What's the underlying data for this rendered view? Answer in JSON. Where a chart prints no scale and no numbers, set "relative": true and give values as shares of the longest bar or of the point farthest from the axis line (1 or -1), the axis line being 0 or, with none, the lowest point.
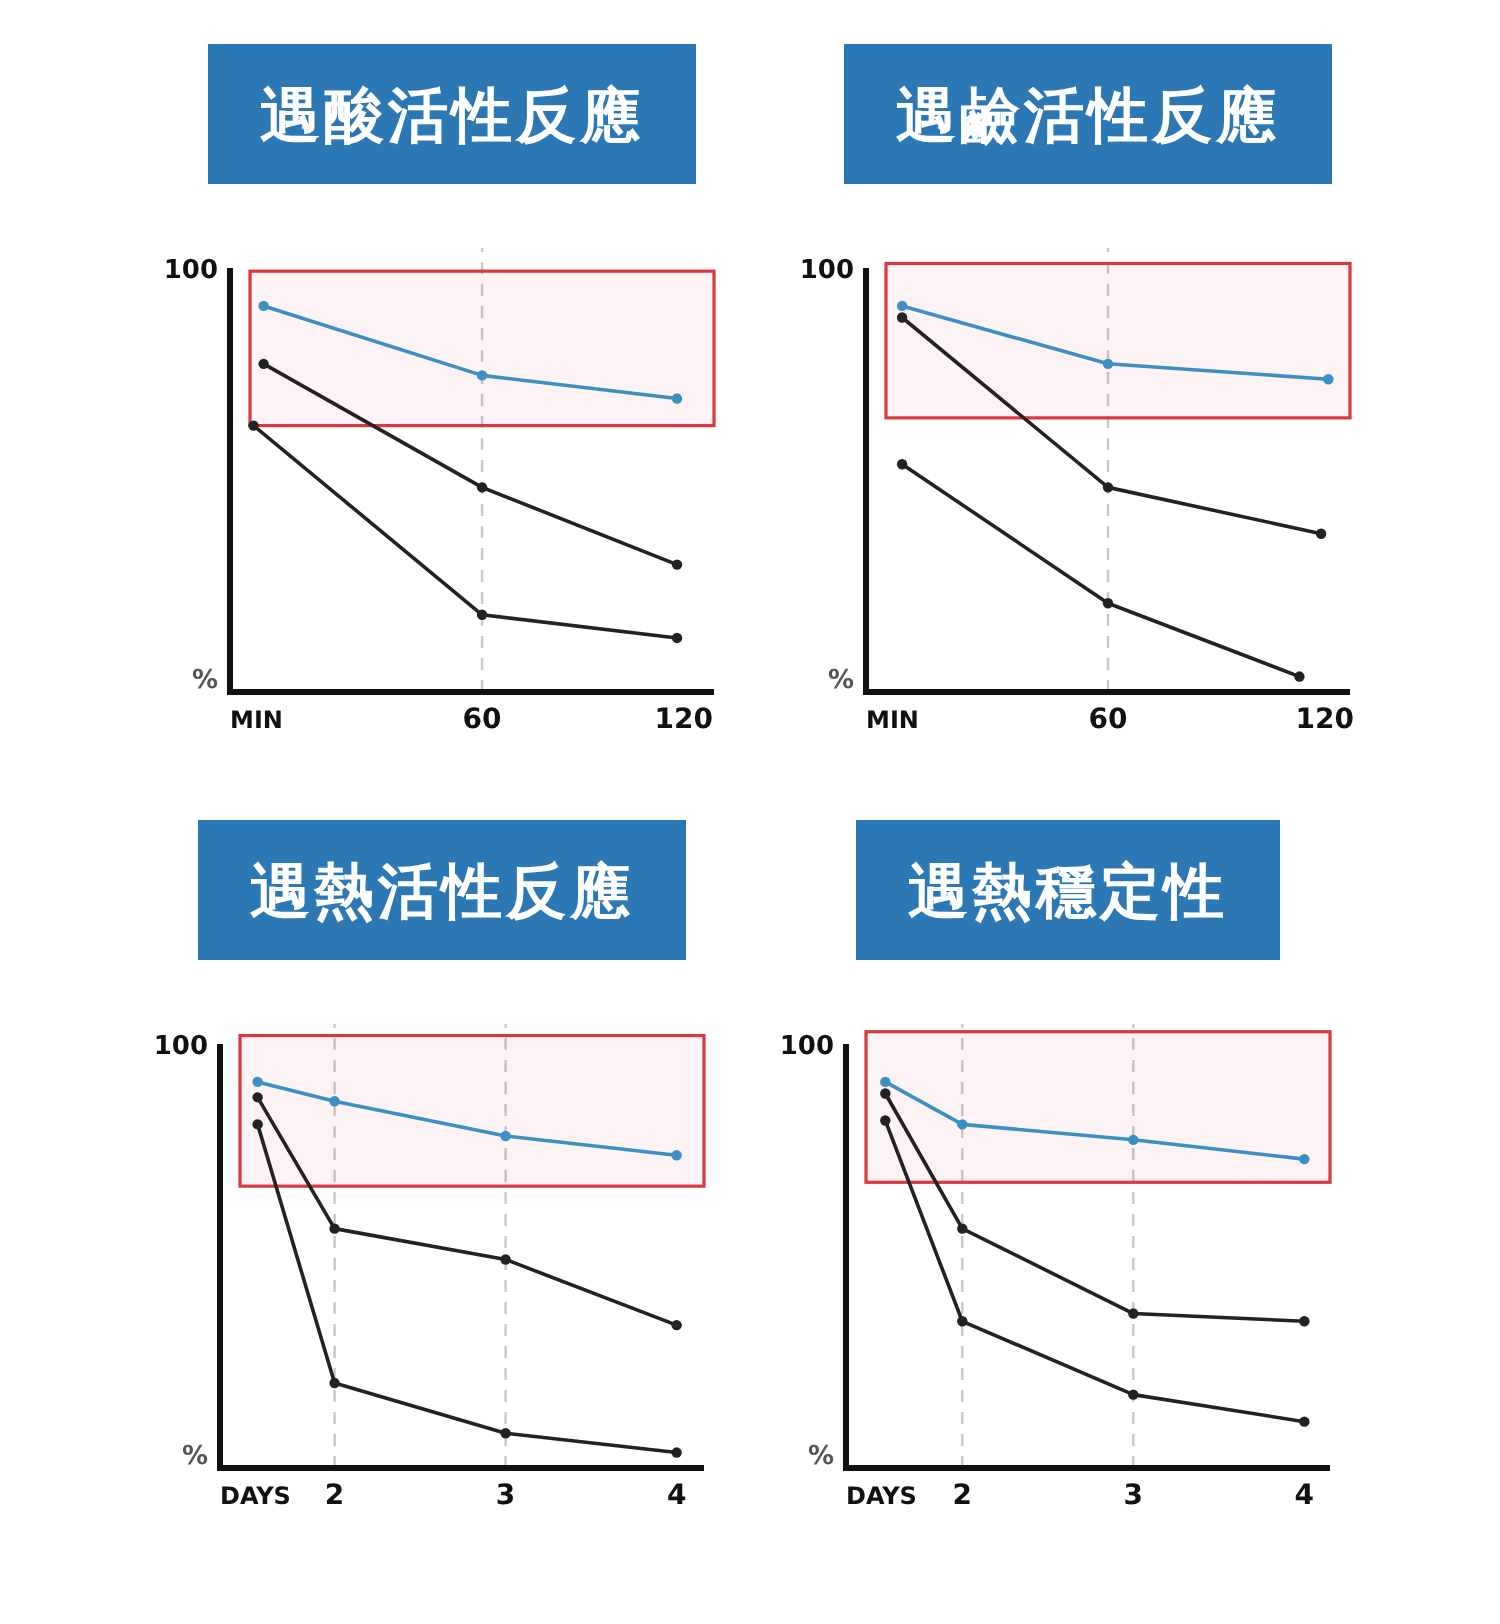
{
  "chart_data": [
    {
      "type": "line",
      "title": "遇酸活性反應",
      "xlabel": "MIN",
      "ylabel": "%",
      "annotations": [
        "100"
      ],
      "relative": true,
      "xlim": [
        -15,
        129
      ],
      "xticks": [
        60,
        120
      ],
      "marker": "circle",
      "series": [
        {
          "color": "#3a8fc4",
          "x": [
            -5,
            60,
            118
          ],
          "values": [
            1,
            0.82,
            0.76
          ]
        },
        {
          "color": "#222222",
          "x": [
            -5,
            60,
            118
          ],
          "values": [
            0.85,
            0.53,
            0.33
          ]
        },
        {
          "color": "#222222",
          "x": [
            -8,
            60,
            118
          ],
          "values": [
            0.69,
            0.2,
            0.14
          ]
        }
      ],
      "bands": [
        {
          "axis": "y",
          "from": 0.69,
          "to": 1.09,
          "color": "#d9383e"
        }
      ],
      "ref_lines": [
        {
          "axis": "x",
          "value": 60,
          "color": "#c8c8c8",
          "line_style": "dashed"
        }
      ]
    },
    {
      "type": "line",
      "title": "遇鹼活性反應",
      "xlabel": "MIN",
      "ylabel": "%",
      "annotations": [
        "100"
      ],
      "relative": true,
      "xlim": [
        -7,
        127
      ],
      "xticks": [
        60,
        120
      ],
      "marker": "circle",
      "series": [
        {
          "color": "#3a8fc4",
          "x": [
            3,
            60,
            121
          ],
          "values": [
            1,
            0.85,
            0.81
          ]
        },
        {
          "color": "#222222",
          "x": [
            3,
            60,
            119
          ],
          "values": [
            0.97,
            0.53,
            0.41
          ]
        },
        {
          "color": "#222222",
          "x": [
            3,
            60,
            113
          ],
          "values": [
            0.59,
            0.23,
            0.04
          ]
        }
      ],
      "bands": [
        {
          "axis": "y",
          "from": 0.71,
          "to": 1.11,
          "color": "#d9383e"
        }
      ],
      "ref_lines": [
        {
          "axis": "x",
          "value": 60,
          "color": "#c8c8c8",
          "line_style": "dashed"
        }
      ]
    },
    {
      "type": "line",
      "title": "遇熱活性反應",
      "xlabel": "DAYS",
      "ylabel": "%",
      "annotations": [
        "100"
      ],
      "relative": true,
      "xlim": [
        1.33,
        4.16
      ],
      "xticks": [
        2,
        3,
        4
      ],
      "marker": "circle",
      "series": [
        {
          "color": "#3a8fc4",
          "x": [
            1.55,
            2,
            3,
            4
          ],
          "values": [
            1,
            0.95,
            0.86,
            0.81
          ]
        },
        {
          "color": "#222222",
          "x": [
            1.55,
            2,
            3,
            4
          ],
          "values": [
            0.96,
            0.62,
            0.54,
            0.37
          ]
        },
        {
          "color": "#222222",
          "x": [
            1.55,
            2,
            3,
            4
          ],
          "values": [
            0.89,
            0.22,
            0.09,
            0.04
          ]
        }
      ],
      "bands": [
        {
          "axis": "y",
          "from": 0.73,
          "to": 1.12,
          "color": "#d9383e"
        }
      ],
      "ref_lines": [
        {
          "axis": "x",
          "value": 2,
          "color": "#c8c8c8",
          "line_style": "dashed"
        },
        {
          "axis": "x",
          "value": 3,
          "color": "#c8c8c8",
          "line_style": "dashed"
        }
      ]
    },
    {
      "type": "line",
      "title": "遇熱穩定性",
      "xlabel": "DAYS",
      "ylabel": "%",
      "annotations": [
        "100"
      ],
      "relative": true,
      "xlim": [
        1.32,
        4.15
      ],
      "xticks": [
        2,
        3,
        4
      ],
      "marker": "circle",
      "series": [
        {
          "color": "#3a8fc4",
          "x": [
            1.55,
            2,
            3,
            4
          ],
          "values": [
            1,
            0.89,
            0.85,
            0.8
          ]
        },
        {
          "color": "#222222",
          "x": [
            1.55,
            2,
            3,
            4
          ],
          "values": [
            0.97,
            0.62,
            0.4,
            0.38
          ]
        },
        {
          "color": "#222222",
          "x": [
            1.55,
            2,
            3,
            4
          ],
          "values": [
            0.9,
            0.38,
            0.19,
            0.12
          ]
        }
      ],
      "bands": [
        {
          "axis": "y",
          "from": 0.74,
          "to": 1.13,
          "color": "#d9383e"
        }
      ],
      "ref_lines": [
        {
          "axis": "x",
          "value": 2,
          "color": "#c8c8c8",
          "line_style": "dashed"
        },
        {
          "axis": "x",
          "value": 3,
          "color": "#c8c8c8",
          "line_style": "dashed"
        }
      ]
    }
  ]
}
